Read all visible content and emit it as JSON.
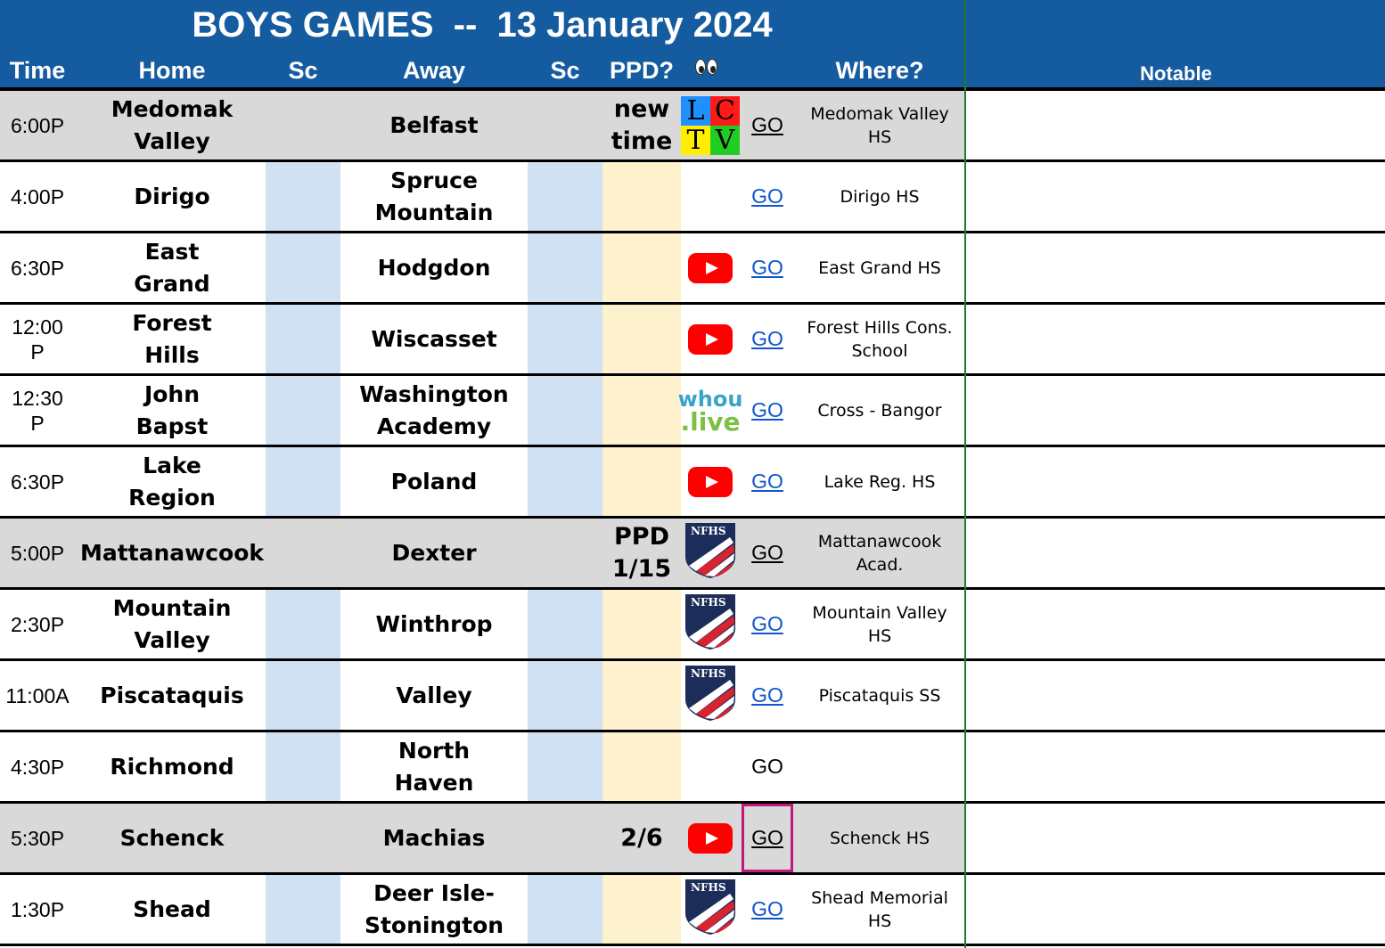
{
  "title": "BOYS GAMES  --  13 January 2024",
  "headers": {
    "time": "Time",
    "home": "Home",
    "sc1": "Sc",
    "away": "Away",
    "sc2": "Sc",
    "ppd": "PPD?",
    "watch": "eyes-icon",
    "where": "Where?",
    "notable": "Notable"
  },
  "colors": {
    "header_bg": "#155ba0",
    "row_gray": "#d9d9d9",
    "score_col": "#cfe1f3",
    "ppd_col": "#fdf2cd",
    "link": "#1155cc",
    "selection": "#c2187a",
    "divider": "#1e7a35"
  },
  "games": [
    {
      "time": "6:00P",
      "home": "Medomak Valley",
      "away": "Belfast",
      "ppd": "new time",
      "watch": "lctv-icon",
      "go": "GO",
      "where": "Medomak Valley HS",
      "highlight": true
    },
    {
      "time": "4:00P",
      "home": "Dirigo",
      "away": "Spruce Mountain",
      "ppd": "",
      "watch": "",
      "go": "GO",
      "where": "Dirigo HS",
      "highlight": false
    },
    {
      "time": "6:30P",
      "home": "East Grand",
      "away": "Hodgdon",
      "ppd": "",
      "watch": "youtube-icon",
      "go": "GO",
      "where": "East Grand HS",
      "highlight": false
    },
    {
      "time": "12:00 P",
      "home": "Forest Hills",
      "away": "Wiscasset",
      "ppd": "",
      "watch": "youtube-icon",
      "go": "GO",
      "where": "Forest Hills Cons. School",
      "highlight": false
    },
    {
      "time": "12:30 P",
      "home": "John Bapst",
      "away": "Washington Academy",
      "ppd": "",
      "watch": "whou-live-icon",
      "go": "GO",
      "where": "Cross - Bangor",
      "highlight": false
    },
    {
      "time": "6:30P",
      "home": "Lake Region",
      "away": "Poland",
      "ppd": "",
      "watch": "youtube-icon",
      "go": "GO",
      "where": "Lake Reg. HS",
      "highlight": false
    },
    {
      "time": "5:00P",
      "home": "Mattanawcook",
      "away": "Dexter",
      "ppd": "PPD 1/15",
      "watch": "nfhs-icon",
      "go": "GO",
      "where": "Mattanawcook Acad.",
      "highlight": true
    },
    {
      "time": "2:30P",
      "home": "Mountain Valley",
      "away": "Winthrop",
      "ppd": "",
      "watch": "nfhs-icon",
      "go": "GO",
      "where": "Mountain Valley HS",
      "highlight": false
    },
    {
      "time": "11:00A",
      "home": "Piscataquis",
      "away": "Valley",
      "ppd": "",
      "watch": "nfhs-icon",
      "go": "GO",
      "where": "Piscataquis SS",
      "highlight": false
    },
    {
      "time": "4:30P",
      "home": "Richmond",
      "away": "North Haven",
      "ppd": "",
      "watch": "",
      "go": "GO",
      "where": "",
      "highlight": false
    },
    {
      "time": "5:30P",
      "home": "Schenck",
      "away": "Machias",
      "ppd": "2/6",
      "watch": "youtube-icon",
      "go": "GO",
      "where": "Schenck HS",
      "highlight": true
    },
    {
      "time": "1:30P",
      "home": "Shead",
      "away": "Deer Isle-Stonington",
      "ppd": "",
      "watch": "nfhs-icon",
      "go": "GO",
      "where": "Shead Memorial HS",
      "highlight": false
    }
  ],
  "lctv_letters": [
    "L",
    "C",
    "T",
    "V"
  ],
  "whou_text": [
    "whou",
    ".live"
  ],
  "nfhs_text": "NFHS"
}
